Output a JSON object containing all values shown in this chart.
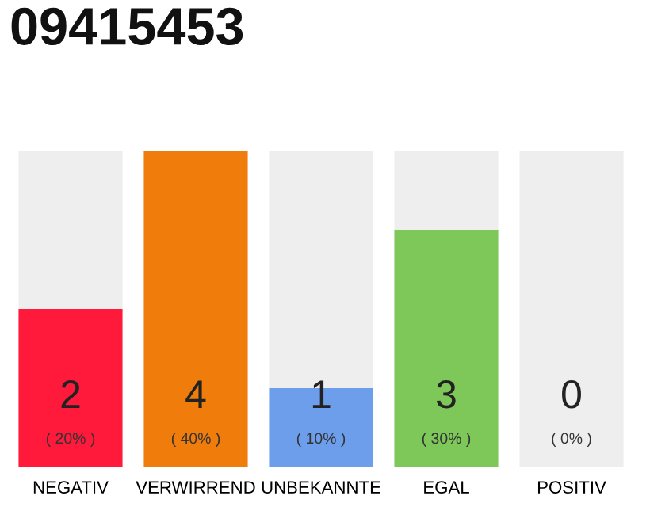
{
  "chart_data": {
    "type": "bar",
    "title": "09415453",
    "categories": [
      "NEGATIV",
      "VERWIRREND",
      "UNBEKANNTE",
      "EGAL",
      "POSITIV"
    ],
    "stacked": true,
    "series": [
      {
        "colors": [
          "#ff1a3c",
          "#f07c0c",
          "#6d9eeb",
          "#7ec85a",
          "#cccccc"
        ],
        "values": [
          2,
          4,
          1,
          3,
          0
        ],
        "value_labels": [
          "2",
          "4",
          "1",
          "3",
          null
        ]
      },
      {
        "color": "#eeeeee",
        "values": [
          2,
          0,
          3,
          1,
          4
        ]
      }
    ],
    "annotations": [
      "( 20% )",
      "( 40% )",
      "( 10% )",
      "( 30% )",
      "( 0% )",
      "0"
    ]
  }
}
